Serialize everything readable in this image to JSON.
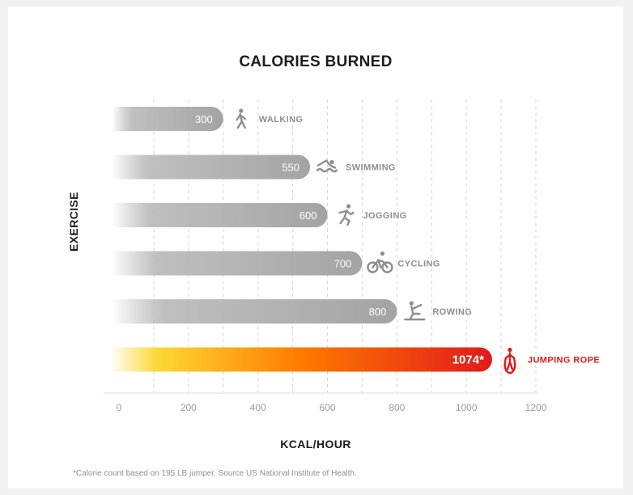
{
  "chart_data": {
    "type": "bar",
    "orientation": "horizontal",
    "title": "CALORIES BURNED",
    "xlabel": "KCAL/HOUR",
    "ylabel": "EXERCISE",
    "categories": [
      "WALKING",
      "SWIMMING",
      "JOGGING",
      "CYCLING",
      "ROWING",
      "JUMPING ROPE"
    ],
    "values": [
      300,
      550,
      600,
      700,
      800,
      1074
    ],
    "value_labels": [
      "300",
      "550",
      "600",
      "700",
      "800",
      "1074*"
    ],
    "icons": [
      "walking-icon",
      "swimming-icon",
      "jogging-icon",
      "cycling-icon",
      "rowing-icon",
      "jumping-rope-icon"
    ],
    "highlight_index": 5,
    "xlim": [
      0,
      1200
    ],
    "xticks": [
      0,
      200,
      400,
      600,
      800,
      1000,
      1200
    ],
    "grid": true,
    "colors": {
      "bar": "#aaaaaa",
      "label": "#8e8e8e",
      "highlight_start": "#fdd835",
      "highlight_mid": "#ff7a00",
      "highlight_end": "#e01a1a",
      "highlight_text": "#e01a1a"
    },
    "footnote": "*Calorie count based on 195 LB jumper. Source US National Institute of Health."
  }
}
